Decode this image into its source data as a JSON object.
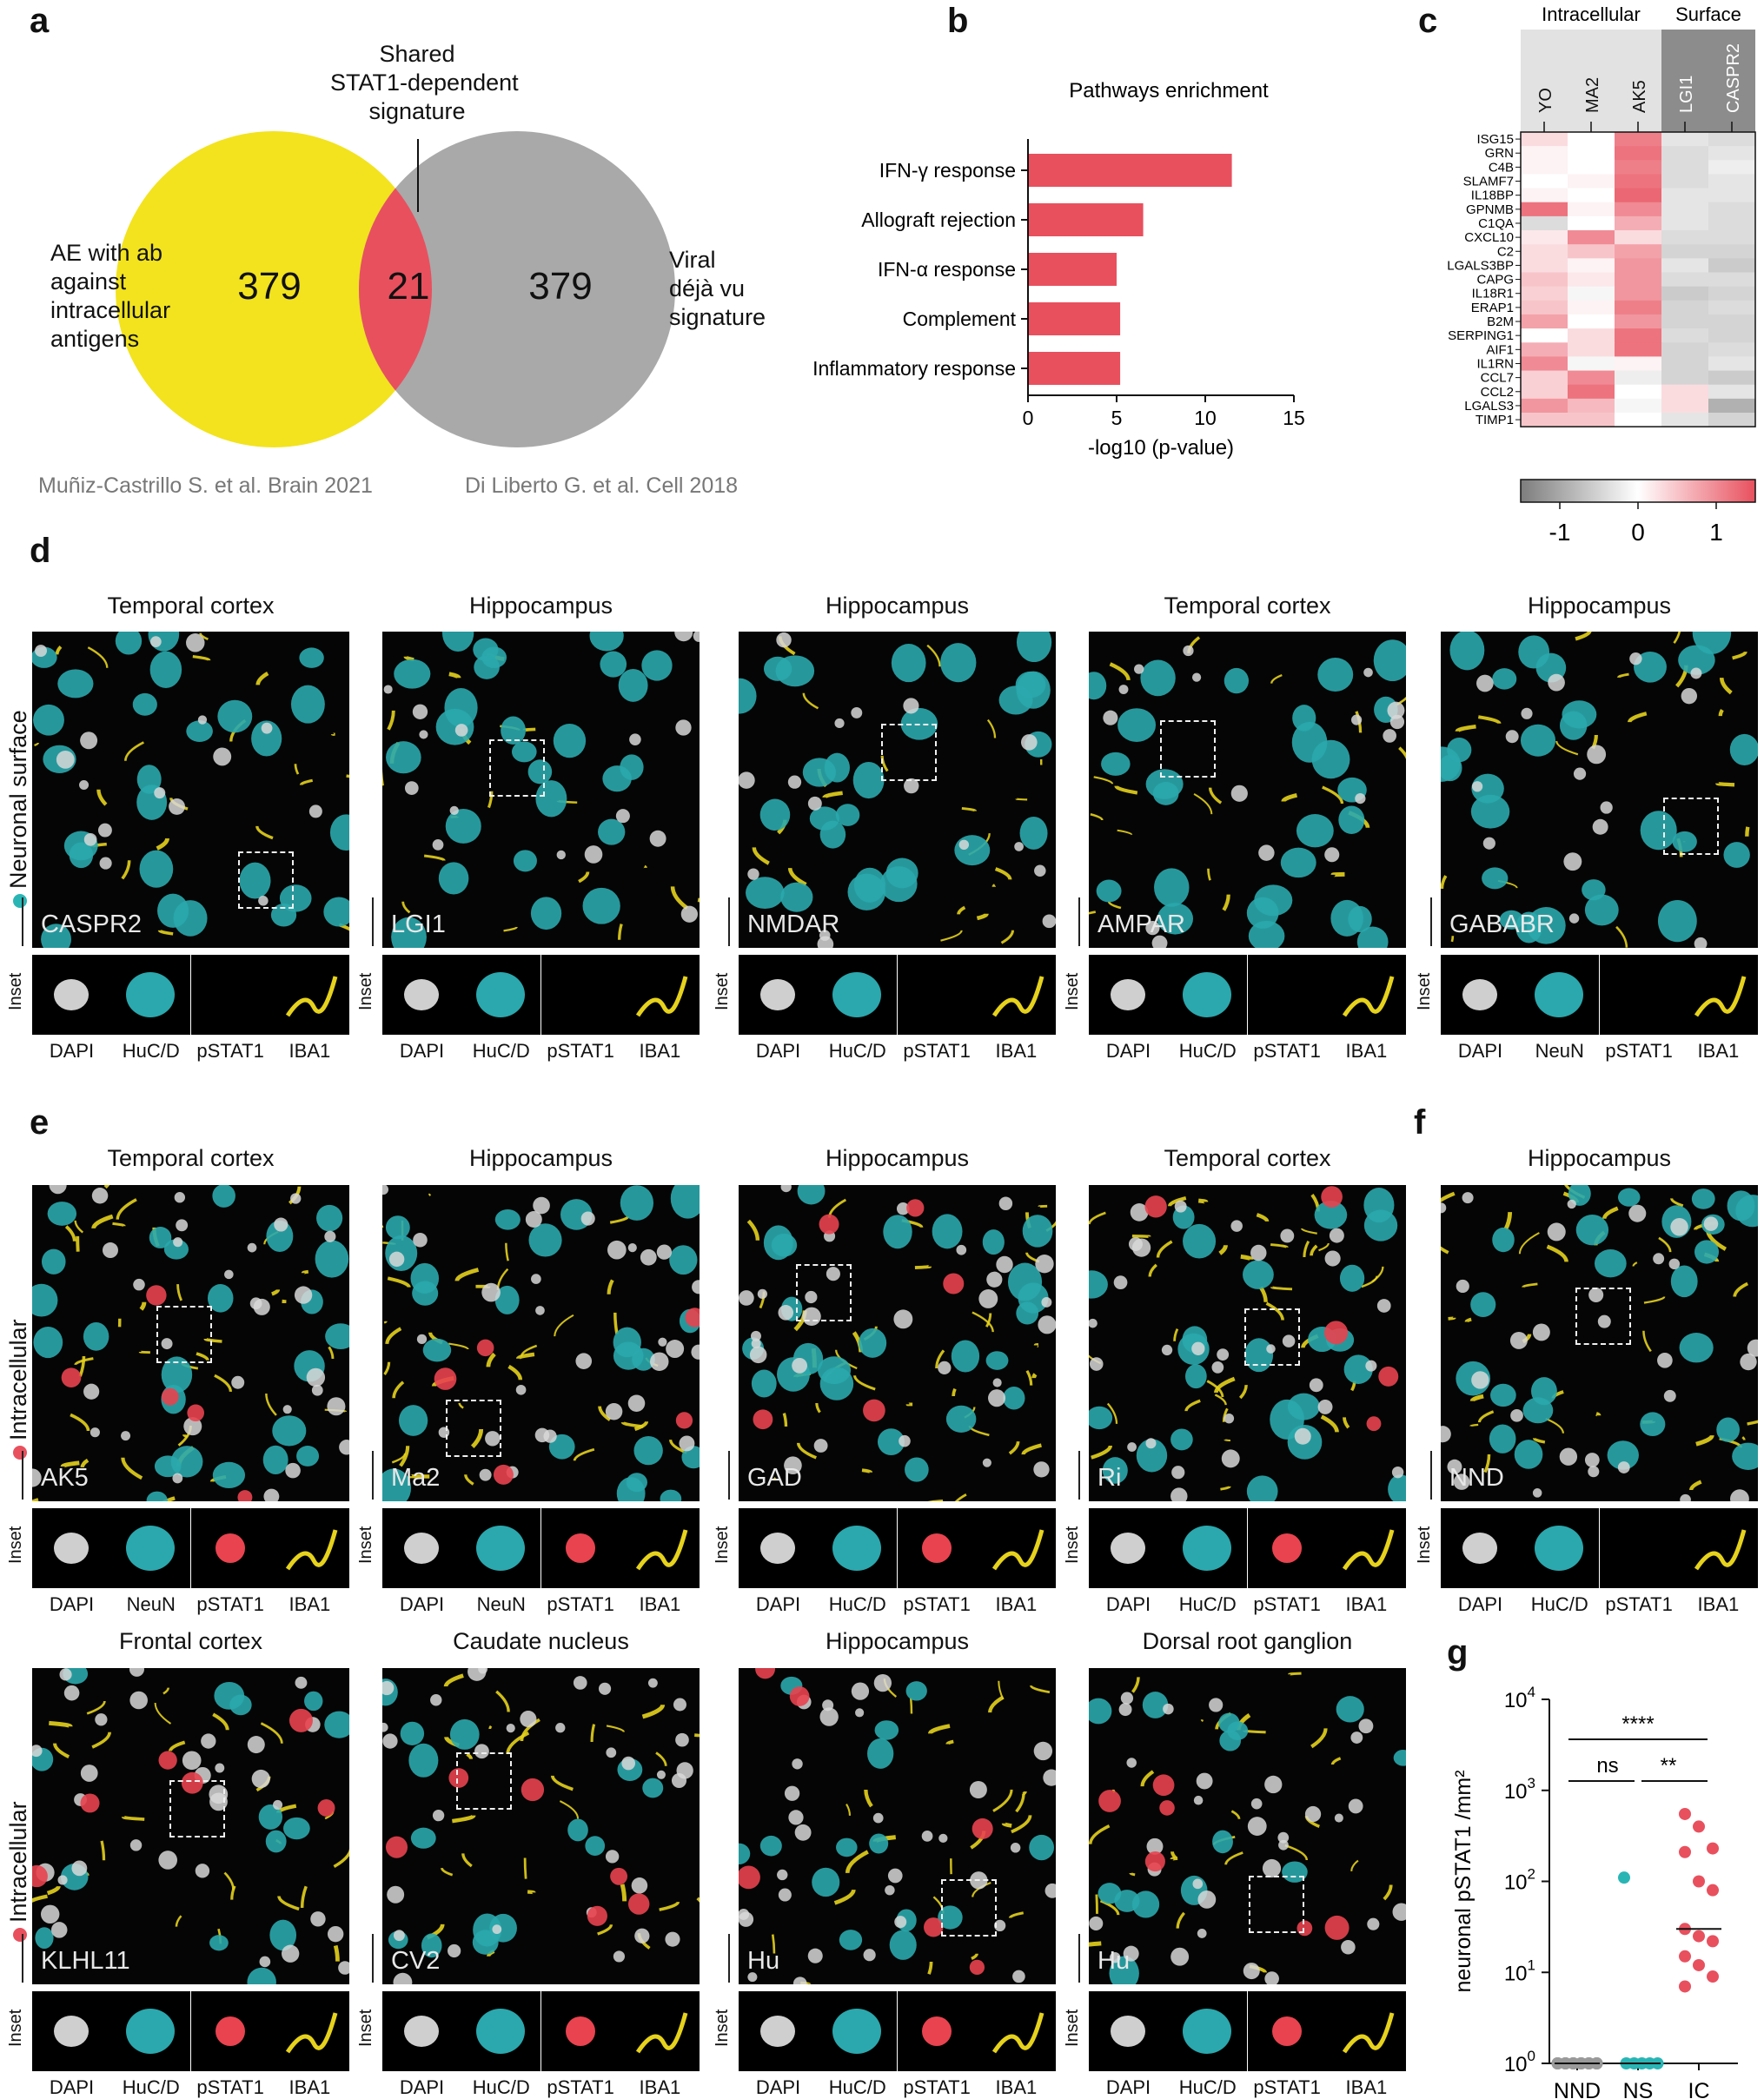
{
  "panel_letters": {
    "a": "a",
    "b": "b",
    "c": "c",
    "d": "d",
    "e": "e",
    "f": "f",
    "g": "g"
  },
  "venn": {
    "left_label": [
      "AE with ab",
      "against",
      "intracellular",
      "antigens"
    ],
    "right_label": [
      "Viral",
      "déjà vu",
      "signature"
    ],
    "shared_label": [
      "Shared",
      "STAT1-dependent",
      "signature"
    ],
    "left_count": "379",
    "shared_count": "21",
    "right_count": "379",
    "left_ref": "Muñiz-Castrillo S. et al. Brain 2021",
    "right_ref": "Di Liberto G. et al. Cell 2018",
    "colors": {
      "left": "#f2e31e",
      "right": "#a9a9a9",
      "shared": "#e8505e"
    }
  },
  "chart_data": [
    {
      "type": "bar",
      "orientation": "horizontal",
      "title": "Pathways enrichment",
      "categories": [
        "IFN-γ response",
        "Allograft rejection",
        "IFN-α response",
        "Complement",
        "Inflammatory response"
      ],
      "values": [
        11.5,
        6.5,
        5.0,
        5.2,
        5.2
      ],
      "xlabel": "-log10 (p-value)",
      "xlim": [
        0,
        15
      ],
      "xticks": [
        "0",
        "5",
        "10",
        "15"
      ],
      "color": "#e8505e"
    },
    {
      "type": "heatmap",
      "group_labels": [
        "Intracellular",
        "Surface"
      ],
      "columns": [
        "YO",
        "MA2",
        "AK5",
        "LGI1",
        "CASPR2"
      ],
      "rows": [
        "ISG15",
        "GRN",
        "C4B",
        "SLAMF7",
        "IL18BP",
        "GPNMB",
        "C1QA",
        "CXCL10",
        "C2",
        "LGALS3BP",
        "CAPG",
        "IL18R1",
        "ERAP1",
        "B2M",
        "SERPING1",
        "AIF1",
        "IL1RN",
        "CCL7",
        "CCL2",
        "LGALS3",
        "TIMP1"
      ],
      "values": [
        [
          0.3,
          0.0,
          1.1,
          -0.3,
          -0.4
        ],
        [
          0.1,
          0.0,
          1.2,
          -0.4,
          -0.3
        ],
        [
          0.1,
          0.0,
          1.1,
          -0.4,
          -0.2
        ],
        [
          0.0,
          0.1,
          1.2,
          -0.4,
          -0.3
        ],
        [
          0.1,
          0.0,
          1.3,
          -0.3,
          -0.3
        ],
        [
          1.2,
          0.1,
          1.0,
          -0.3,
          -0.4
        ],
        [
          -0.4,
          0.0,
          0.7,
          -0.3,
          -0.4
        ],
        [
          0.2,
          1.0,
          0.3,
          -0.4,
          -0.4
        ],
        [
          0.3,
          0.5,
          0.8,
          -0.5,
          -0.5
        ],
        [
          0.3,
          0.1,
          0.9,
          -0.3,
          -0.6
        ],
        [
          0.5,
          0.2,
          0.9,
          -0.4,
          -0.4
        ],
        [
          0.4,
          -0.1,
          0.9,
          -0.6,
          -0.5
        ],
        [
          0.5,
          0.1,
          1.1,
          -0.5,
          -0.4
        ],
        [
          0.8,
          0.0,
          0.9,
          -0.5,
          -0.5
        ],
        [
          0.0,
          0.3,
          1.2,
          -0.4,
          -0.5
        ],
        [
          0.7,
          0.3,
          1.2,
          -0.5,
          -0.4
        ],
        [
          1.0,
          -0.1,
          0.1,
          -0.5,
          -0.3
        ],
        [
          0.4,
          1.0,
          -0.2,
          -0.5,
          -0.6
        ],
        [
          0.4,
          1.2,
          0.0,
          0.3,
          -0.3
        ],
        [
          0.9,
          0.6,
          -0.1,
          0.3,
          -0.9
        ],
        [
          0.5,
          0.5,
          0.0,
          -0.3,
          -0.5
        ]
      ],
      "colorbar_ticks": [
        "-1",
        "0",
        "1"
      ],
      "vmin": -1.5,
      "vmax": 1.5
    },
    {
      "type": "scatter",
      "ylabel": "neuronal pSTAT1 /mm²",
      "scale": "log",
      "yticks": [
        "10",
        "10",
        "10",
        "10",
        "10"
      ],
      "ytick_exps": [
        "0",
        "1",
        "2",
        "3",
        "4"
      ],
      "categories": [
        "NND",
        "NS",
        "IC"
      ],
      "series": [
        {
          "group": "NND",
          "color": "#9a9a9a",
          "values": [
            1,
            1,
            1,
            1,
            1,
            1,
            1,
            1,
            1,
            1,
            1,
            1,
            1,
            1,
            1,
            1,
            1,
            1
          ]
        },
        {
          "group": "NS",
          "color": "#2ab5b5",
          "values": [
            110,
            1,
            1,
            1,
            1,
            1
          ]
        },
        {
          "group": "IC",
          "color": "#e8505e",
          "values": [
            550,
            400,
            230,
            210,
            100,
            80,
            30,
            25,
            22,
            15,
            12,
            9,
            7
          ]
        }
      ],
      "medians": {
        "NND": 1,
        "NS": 1,
        "IC": 30
      },
      "significance": [
        {
          "pair": [
            "NND",
            "IC"
          ],
          "label": "****"
        },
        {
          "pair": [
            "NND",
            "NS"
          ],
          "label": "ns"
        },
        {
          "pair": [
            "NS",
            "IC"
          ],
          "label": "**"
        }
      ]
    }
  ],
  "row_tags": {
    "surface": "Neuronal surface",
    "intracellular_1": "Intracellular",
    "intracellular_2": "Intracellular",
    "inset": "Inset"
  },
  "micro_d": [
    {
      "title": "Temporal cortex",
      "marker": "CASPR2",
      "insets": [
        "DAPI",
        "HuC/D",
        "pSTAT1",
        "IBA1"
      ]
    },
    {
      "title": "Hippocampus",
      "marker": "LGI1",
      "insets": [
        "DAPI",
        "HuC/D",
        "pSTAT1",
        "IBA1"
      ]
    },
    {
      "title": "Hippocampus",
      "marker": "NMDAR",
      "insets": [
        "DAPI",
        "HuC/D",
        "pSTAT1",
        "IBA1"
      ]
    },
    {
      "title": "Temporal cortex",
      "marker": "AMPAR",
      "insets": [
        "DAPI",
        "HuC/D",
        "pSTAT1",
        "IBA1"
      ]
    },
    {
      "title": "Hippocampus",
      "marker": "GABABR",
      "insets": [
        "DAPI",
        "NeuN",
        "pSTAT1",
        "IBA1"
      ]
    }
  ],
  "micro_e1": [
    {
      "title": "Temporal cortex",
      "marker": "AK5",
      "insets": [
        "DAPI",
        "NeuN",
        "pSTAT1",
        "IBA1"
      ]
    },
    {
      "title": "Hippocampus",
      "marker": "Ma2",
      "insets": [
        "DAPI",
        "NeuN",
        "pSTAT1",
        "IBA1"
      ]
    },
    {
      "title": "Hippocampus",
      "marker": "GAD",
      "insets": [
        "DAPI",
        "HuC/D",
        "pSTAT1",
        "IBA1"
      ]
    },
    {
      "title": "Temporal cortex",
      "marker": "Ri",
      "insets": [
        "DAPI",
        "HuC/D",
        "pSTAT1",
        "IBA1"
      ]
    },
    {
      "title": "Hippocampus",
      "marker": "NND",
      "insets": [
        "DAPI",
        "HuC/D",
        "pSTAT1",
        "IBA1"
      ]
    }
  ],
  "micro_e2": [
    {
      "title": "Frontal cortex",
      "marker": "KLHL11",
      "insets": [
        "DAPI",
        "HuC/D",
        "pSTAT1",
        "IBA1"
      ]
    },
    {
      "title": "Caudate nucleus",
      "marker": "CV2",
      "insets": [
        "DAPI",
        "HuC/D",
        "pSTAT1",
        "IBA1"
      ]
    },
    {
      "title": "Hippocampus",
      "marker": "Hu",
      "insets": [
        "DAPI",
        "HuC/D",
        "pSTAT1",
        "IBA1"
      ]
    },
    {
      "title": "Dorsal root ganglion",
      "marker": "Hu",
      "insets": [
        "DAPI",
        "HuC/D",
        "pSTAT1",
        "IBA1"
      ]
    }
  ]
}
